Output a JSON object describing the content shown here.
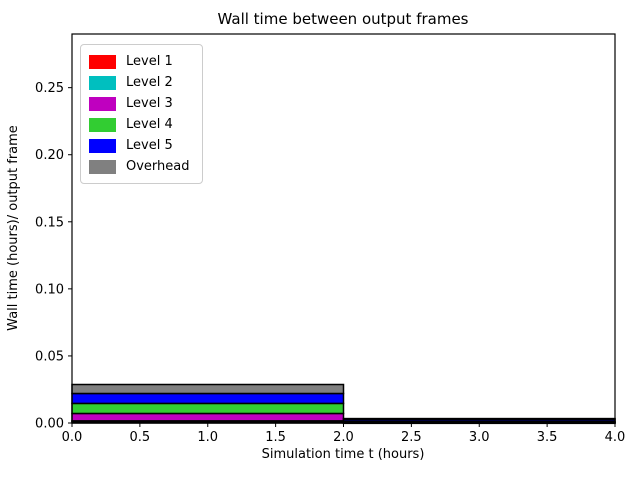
{
  "figure": {
    "background_color": "#ffffff",
    "frame_color": "#000000"
  },
  "chart_data": {
    "type": "area",
    "stacked": true,
    "title": "Wall time between output frames",
    "xlabel": "Simulation time t (hours)",
    "ylabel": "Wall time (hours)/ output frame",
    "xlim": [
      0.0,
      4.0
    ],
    "ylim": [
      0.0,
      0.29
    ],
    "xticks": [
      "0.0",
      "0.5",
      "1.0",
      "1.5",
      "2.0",
      "2.5",
      "3.0",
      "3.5",
      "4.0"
    ],
    "yticks": [
      "0.00",
      "0.05",
      "0.10",
      "0.15",
      "0.20",
      "0.25"
    ],
    "grid": false,
    "legend_position": "upper left",
    "x_boundaries": [
      0.0,
      2.0,
      4.0
    ],
    "series": [
      {
        "name": "Level 1",
        "color": "#ff0000",
        "values": [
          0.0011,
          0.0002
        ]
      },
      {
        "name": "Level 2",
        "color": "#00bfbf",
        "values": [
          0.0005,
          0.0002
        ]
      },
      {
        "name": "Level 3",
        "color": "#bf00bf",
        "values": [
          0.0055,
          0.0004
        ]
      },
      {
        "name": "Level 4",
        "color": "#32cd32",
        "values": [
          0.0075,
          0.0007
        ]
      },
      {
        "name": "Level 5",
        "color": "#0000ff",
        "values": [
          0.0074,
          0.0014
        ]
      },
      {
        "name": "Overhead",
        "color": "#808080",
        "values": [
          0.0067,
          0.0004
        ]
      }
    ],
    "band_edge_color": "#000000",
    "band_edge_width": 1.5
  }
}
